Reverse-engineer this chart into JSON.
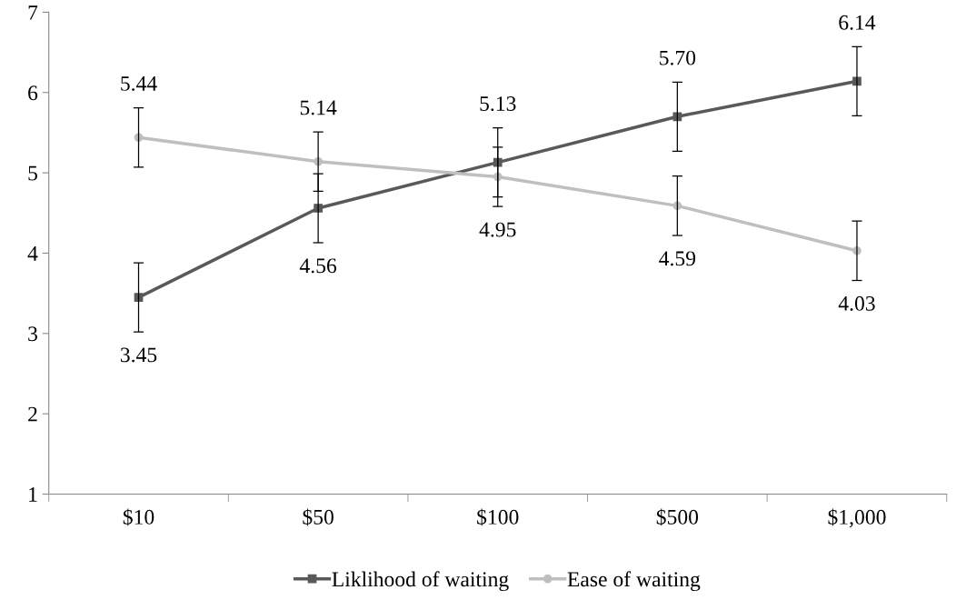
{
  "chart_data": {
    "type": "line",
    "categories": [
      "$10",
      "$50",
      "$100",
      "$500",
      "$1,000"
    ],
    "series": [
      {
        "name": "Liklihood of waiting",
        "color": "#595959",
        "marker": "square",
        "values": [
          3.45,
          4.56,
          5.13,
          5.7,
          6.14
        ],
        "errors": [
          0.43,
          0.43,
          0.43,
          0.43,
          0.43
        ],
        "value_labels": [
          "3.45",
          "4.56",
          "5.13",
          "5.70",
          "6.14"
        ]
      },
      {
        "name": "Ease of waiting",
        "color": "#bfbfbf",
        "marker": "circle",
        "values": [
          5.44,
          5.14,
          4.95,
          4.59,
          4.03
        ],
        "errors": [
          0.37,
          0.37,
          0.37,
          0.37,
          0.37
        ],
        "value_labels": [
          "5.44",
          "5.14",
          "4.95",
          "4.59",
          "4.03"
        ]
      }
    ],
    "ylim": [
      1,
      7
    ],
    "yticks": [
      1,
      2,
      3,
      4,
      5,
      6,
      7
    ],
    "grid": false,
    "legend": "bottom",
    "line_style": "solid"
  }
}
